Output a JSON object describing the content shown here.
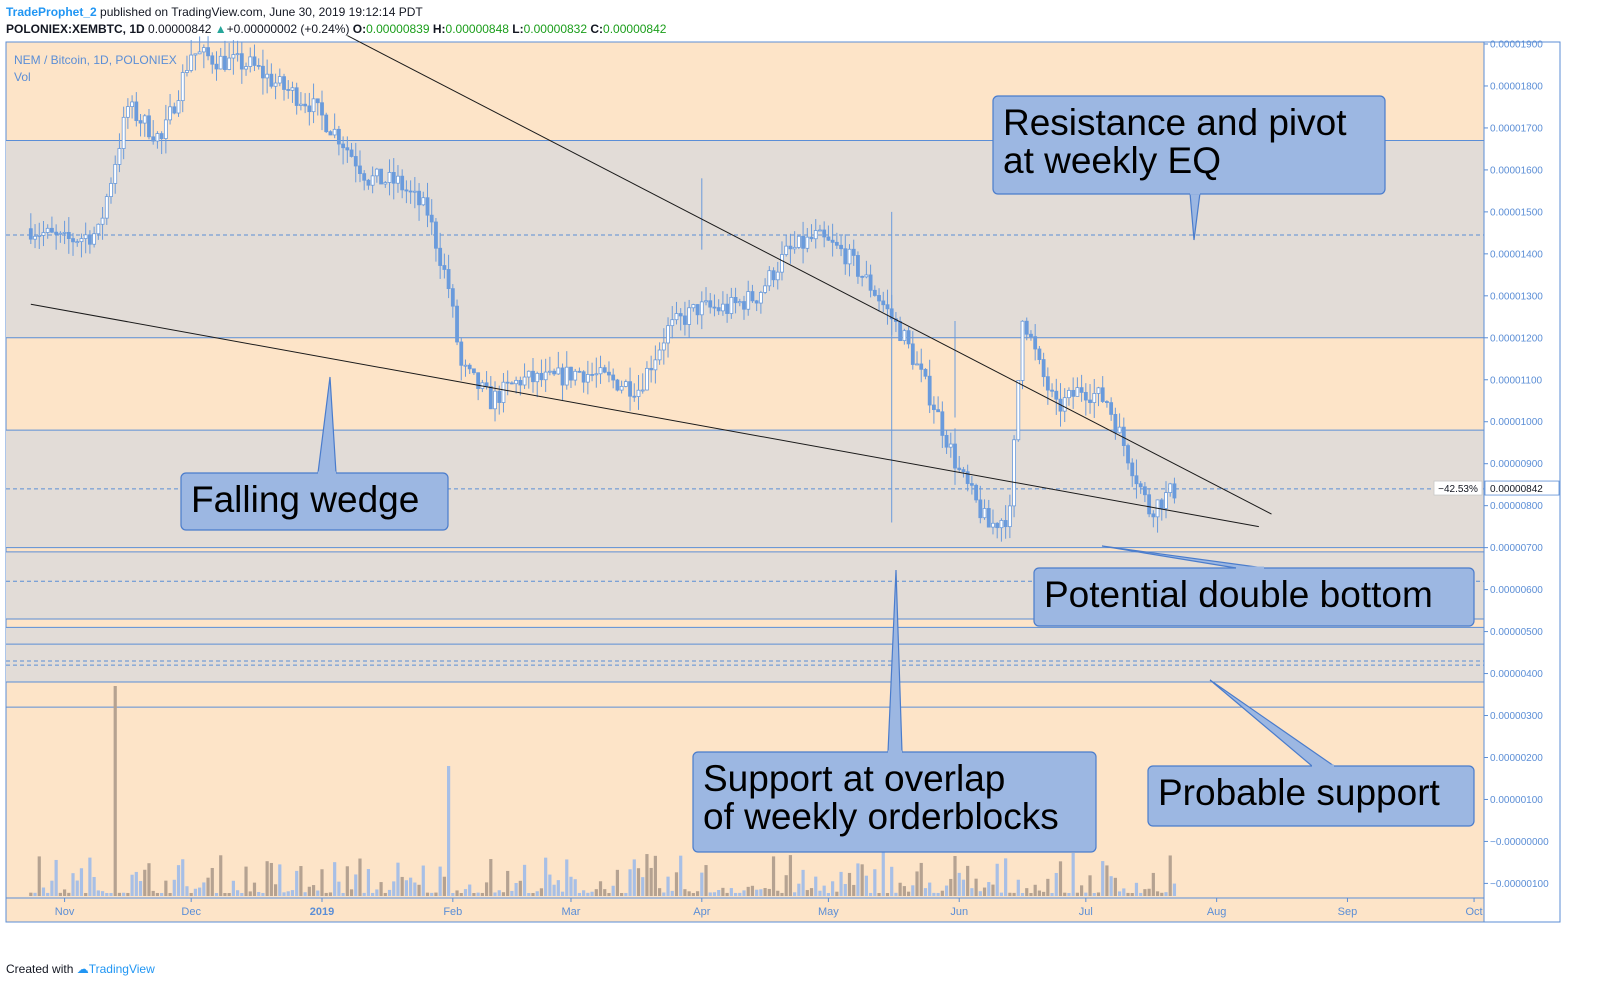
{
  "header": {
    "author": "TradeProphet_2",
    "published_text": "published on TradingView.com, June 30, 2019 19:12:14 PDT",
    "symbol": "POLONIEX:XEMBTC, 1D",
    "last": "0.00000842",
    "change_arrow": "▲",
    "change": "+0.00000002 (+0.24%)",
    "o_label": "O:",
    "o_value": "0.00000839",
    "h_label": "H:",
    "h_value": "0.00000848",
    "l_label": "L:",
    "l_value": "0.00000832",
    "c_label": "C:",
    "c_value": "0.00000842"
  },
  "legend": {
    "title": "NEM / Bitcoin, 1D, POLONIEX",
    "vol": "Vol"
  },
  "footer": {
    "created_with": "Created with",
    "brand": "TradingView"
  },
  "colors": {
    "background": "#fde4c8",
    "zone_fill": "#e2dcd7",
    "h_line": "#5b8ed6",
    "candle": "#6a9bdc",
    "vol_up": "#a7bfe6",
    "vol_down": "#b5a291",
    "callout_fill": "#9cb7e2",
    "callout_stroke": "#4a7ccc",
    "trendline": "#1a1a1a"
  },
  "chart_data": {
    "type": "candlestick",
    "title": "NEM / Bitcoin, 1D, POLONIEX",
    "y_unit": "BTC",
    "ylim": [
      -2e-06,
      1.9e-05
    ],
    "y_ticks": [
      "0.00001900",
      "0.00001800",
      "0.00001700",
      "0.00001600",
      "0.00001500",
      "0.00001400",
      "0.00001300",
      "0.00001200",
      "0.00001100",
      "0.00001000",
      "0.00000900",
      "0.00000800",
      "0.00000700",
      "0.00000600",
      "0.00000500",
      "0.00000400",
      "0.00000300",
      "0.00000200",
      "0.00000100",
      "−0.00000000",
      "−0.00000100"
    ],
    "x_ticks": [
      "Nov",
      "Dec",
      "2019",
      "Feb",
      "Mar",
      "Apr",
      "May",
      "Jun",
      "Jul",
      "Aug",
      "Sep",
      "Oct"
    ],
    "last_price_label": "0.00000842",
    "last_price_change_label": "−42.53%",
    "weekly_path": [
      [
        "2018-10-24",
        1.46e-05
      ],
      [
        "2018-11-01",
        1.43e-05
      ],
      [
        "2018-11-09",
        1.45e-05
      ],
      [
        "2018-11-16",
        1.75e-05
      ],
      [
        "2018-11-24",
        1.67e-05
      ],
      [
        "2018-12-01",
        1.88e-05
      ],
      [
        "2018-12-08",
        1.86e-05
      ],
      [
        "2018-12-15",
        1.85e-05
      ],
      [
        "2018-12-22",
        1.8e-05
      ],
      [
        "2018-12-29",
        1.76e-05
      ],
      [
        "2019-01-05",
        1.68e-05
      ],
      [
        "2019-01-12",
        1.58e-05
      ],
      [
        "2019-01-19",
        1.57e-05
      ],
      [
        "2019-01-26",
        1.5e-05
      ],
      [
        "2019-01-31",
        1.32e-05
      ],
      [
        "2019-02-03",
        1.13e-05
      ],
      [
        "2019-02-10",
        1.05e-05
      ],
      [
        "2019-02-17",
        1.1e-05
      ],
      [
        "2019-02-24",
        1.1e-05
      ],
      [
        "2019-03-03",
        1.12e-05
      ],
      [
        "2019-03-10",
        1.1e-05
      ],
      [
        "2019-03-17",
        1.08e-05
      ],
      [
        "2019-03-24",
        1.22e-05
      ],
      [
        "2019-03-31",
        1.27e-05
      ],
      [
        "2019-04-07",
        1.27e-05
      ],
      [
        "2019-04-14",
        1.3e-05
      ],
      [
        "2019-04-21",
        1.4e-05
      ],
      [
        "2019-04-28",
        1.44e-05
      ],
      [
        "2019-05-05",
        1.4e-05
      ],
      [
        "2019-05-12",
        1.31e-05
      ],
      [
        "2019-05-19",
        1.2e-05
      ],
      [
        "2019-05-26",
        1.04e-05
      ],
      [
        "2019-06-01",
        8.8e-06
      ],
      [
        "2019-06-08",
        7.5e-06
      ],
      [
        "2019-06-13",
        7.8e-06
      ],
      [
        "2019-06-16",
        1.26e-05
      ],
      [
        "2019-06-20",
        1.13e-05
      ],
      [
        "2019-06-24",
        1.03e-05
      ],
      [
        "2019-06-30",
        1.08e-05
      ],
      [
        "2019-07-06",
        1.05e-05
      ],
      [
        "2019-07-11",
        9.2e-06
      ],
      [
        "2019-07-16",
        7.9e-06
      ],
      [
        "2019-07-21",
        8.3e-06
      ],
      [
        "2019-07-23",
        8.4e-06
      ]
    ],
    "horizontal_levels": [
      {
        "price": 1.67e-05,
        "style": "solid"
      },
      {
        "price": 1.445e-05,
        "style": "dashed"
      },
      {
        "price": 1.2e-05,
        "style": "solid"
      },
      {
        "price": 9.8e-06,
        "style": "solid"
      },
      {
        "price": 8.4e-06,
        "style": "dashed"
      },
      {
        "price": 7e-06,
        "style": "solid"
      },
      {
        "price": 6.9e-06,
        "style": "solid"
      },
      {
        "price": 6.2e-06,
        "style": "dashed"
      },
      {
        "price": 5.3e-06,
        "style": "solid"
      },
      {
        "price": 5.1e-06,
        "style": "solid"
      },
      {
        "price": 4.7e-06,
        "style": "solid"
      },
      {
        "price": 4.3e-06,
        "style": "dashed"
      },
      {
        "price": 4.2e-06,
        "style": "dashed"
      },
      {
        "price": 3.8e-06,
        "style": "solid"
      },
      {
        "price": 3.2e-06,
        "style": "solid"
      }
    ],
    "zones": [
      {
        "from": 1.67e-05,
        "to": 1.2e-05
      },
      {
        "from": 9.8e-06,
        "to": 7e-06
      },
      {
        "from": 6.9e-06,
        "to": 5.3e-06
      },
      {
        "from": 5.1e-06,
        "to": 3.8e-06
      }
    ],
    "trendlines": [
      {
        "name": "upper wedge line",
        "from": [
          "2019-01-07",
          1.92e-05
        ],
        "to": [
          "2019-08-14",
          7.8e-06
        ]
      },
      {
        "name": "lower wedge line",
        "from": [
          "2018-10-24",
          1.28e-05
        ],
        "to": [
          "2019-08-11",
          7.5e-06
        ]
      }
    ],
    "volume_spikes": [
      "2018-11-13",
      "2019-01-31",
      "2019-05-14",
      "2019-05-31"
    ],
    "annotations": [
      "Resistance and pivot at weekly EQ",
      "Falling wedge",
      "Potential double bottom",
      "Support at overlap of weekly orderblocks",
      "Probable support"
    ]
  },
  "callouts": {
    "resistance": [
      "Resistance and pivot",
      "at weekly EQ"
    ],
    "wedge": [
      "Falling wedge"
    ],
    "double_bottom": [
      "Potential double bottom"
    ],
    "orderblocks": [
      "Support at overlap",
      "of weekly orderblocks"
    ],
    "probable": [
      "Probable support"
    ]
  }
}
